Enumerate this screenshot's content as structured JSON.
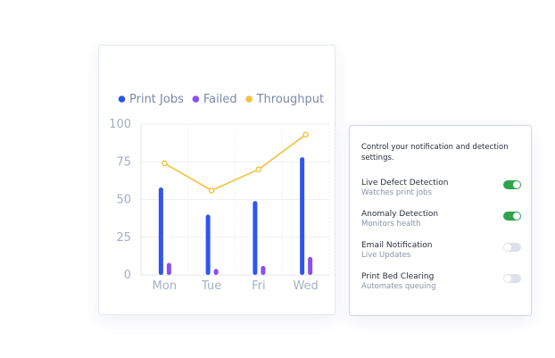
{
  "chart_data": {
    "type": "bar",
    "categories": [
      "Mon",
      "Tue",
      "Fri",
      "Wed"
    ],
    "series": [
      {
        "name": "Print Jobs",
        "type": "bar",
        "color": "#2f55f0",
        "values": [
          58,
          40,
          49,
          78
        ]
      },
      {
        "name": "Failed",
        "type": "bar",
        "color": "#8a4ef2",
        "values": [
          8,
          4,
          6,
          12
        ]
      },
      {
        "name": "Throughput",
        "type": "line",
        "color": "#f2c23a",
        "values": [
          74,
          56,
          70,
          93
        ]
      }
    ],
    "yticks": [
      0,
      25,
      50,
      75,
      100
    ],
    "ylim": [
      0,
      100
    ],
    "grid": true,
    "legend": "top"
  },
  "settings": {
    "description": "Control your notification and detection settings.",
    "items": [
      {
        "title": "Live Defect Detection",
        "subtitle": "Watches print jobs",
        "enabled": true
      },
      {
        "title": "Anomaly Detection",
        "subtitle": "Monitors health",
        "enabled": true
      },
      {
        "title": "Email Notification",
        "subtitle": "Live Updates",
        "enabled": false
      },
      {
        "title": "Print Bed Clearing",
        "subtitle": "Automates queuing",
        "enabled": false
      }
    ]
  }
}
